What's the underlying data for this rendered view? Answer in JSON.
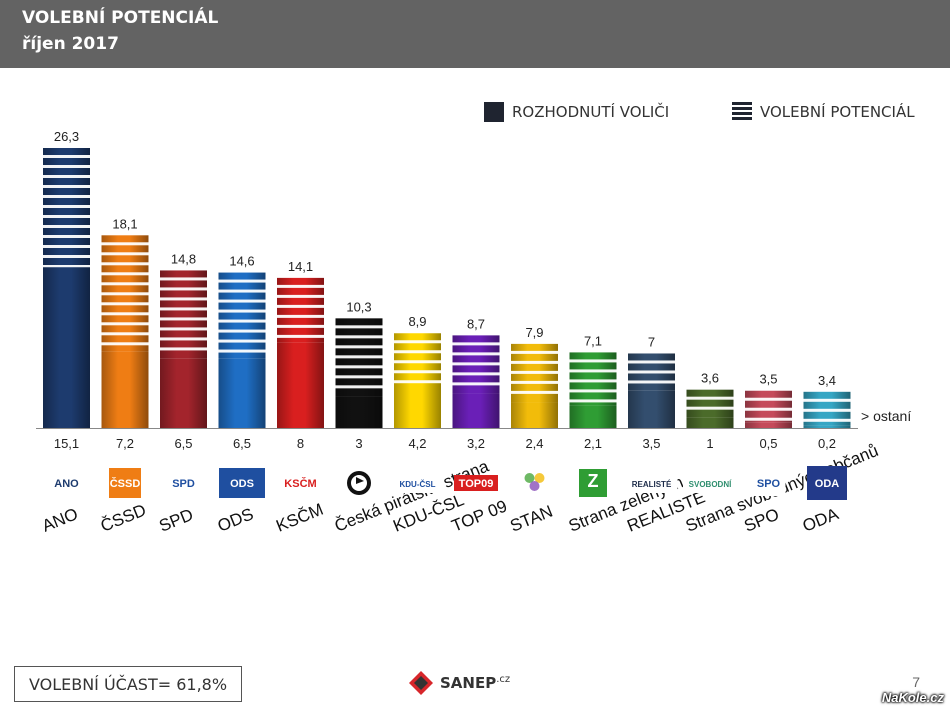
{
  "header": {
    "title": "VOLEBNÍ POTENCIÁL",
    "subtitle": "říjen 2017"
  },
  "legend": {
    "decided_label": "ROZHODNUTÍ VOLIČI",
    "potential_label": "VOLEBNÍ POTENCIÁL"
  },
  "footer": {
    "turnout": "VOLEBNÍ ÚČAST= 61,8%",
    "logo": "SANEP",
    "logo_suffix": ".cz",
    "page": "7",
    "watermark": "NaKole.cz"
  },
  "chart_data": {
    "type": "bar",
    "title": "VOLEBNÍ POTENCIÁL",
    "subtitle": "říjen 2017",
    "series": [
      {
        "name": "VOLEBNÍ POTENCIÁL",
        "values": [
          26.3,
          18.1,
          14.8,
          14.6,
          14.1,
          10.3,
          8.9,
          8.7,
          7.9,
          7.1,
          7,
          3.6,
          3.5,
          3.4
        ],
        "labels": [
          "26,3",
          "18,1",
          "14,8",
          "14,6",
          "14,1",
          "10,3",
          "8,9",
          "8,7",
          "7,9",
          "7,1",
          "7",
          "3,6",
          "3,5",
          "3,4"
        ]
      },
      {
        "name": "ROZHODNUTÍ VOLIČI",
        "values": [
          15.1,
          7.2,
          6.5,
          6.5,
          8,
          3,
          4.2,
          3.2,
          2.4,
          2.1,
          3.5,
          1,
          0.5,
          0.2
        ],
        "labels": [
          "15,1",
          "7,2",
          "6,5",
          "6,5",
          "8",
          "3",
          "4,2",
          "3,2",
          "2,4",
          "2,1",
          "3,5",
          "1",
          "0,5",
          "0,2"
        ]
      }
    ],
    "categories": [
      "ANO",
      "ČSSD",
      "SPD",
      "ODS",
      "KSČM",
      "Česká pirátská strana",
      "KDU-ČSL",
      "TOP 09",
      "STAN",
      "Strana zelených",
      "REALISTÉ",
      "Strana svobodných občanů",
      "SPO",
      "ODA"
    ],
    "logos": [
      "ANO",
      "ČSSD",
      "SPD",
      "ODS",
      "KSČM",
      "",
      "KDU-ČSL",
      "TOP09",
      "",
      "Z",
      "REALISTÉ",
      "SVOBODNÍ",
      "SPO",
      "ODA"
    ],
    "colors": [
      "#1d3b6e",
      "#ef7d14",
      "#a3242c",
      "#1f6ec4",
      "#d91f1f",
      "#111111",
      "#ffd800",
      "#6a1fb7",
      "#f2bc0a",
      "#2f9d34",
      "#334e6e",
      "#4b6b2a",
      "#c54a5a",
      "#35a6c4"
    ],
    "annotation": "> ostaní",
    "ylim": [
      0,
      28
    ],
    "grid": false,
    "legend_position": "top-right"
  }
}
